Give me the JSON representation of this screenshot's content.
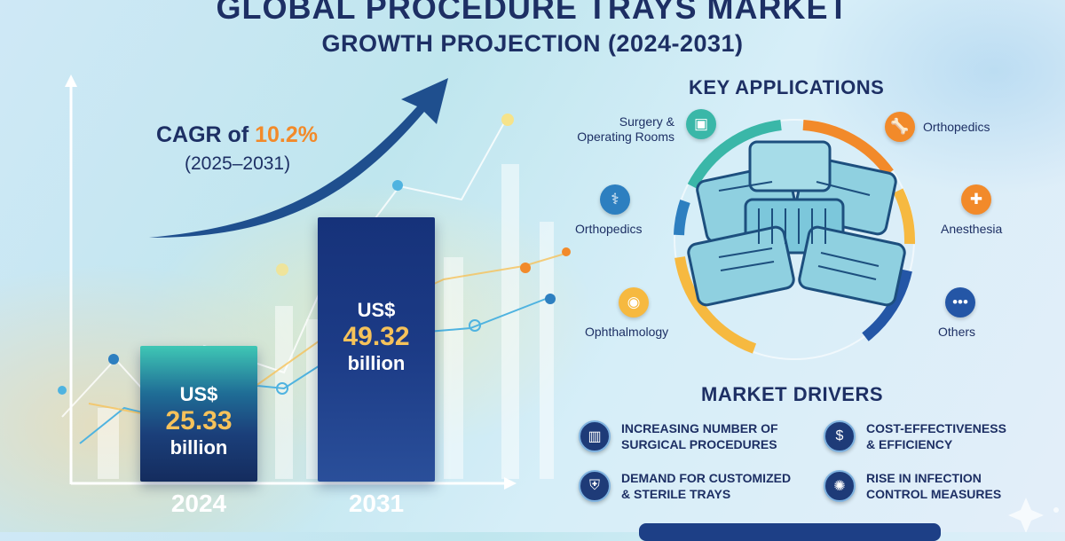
{
  "header": {
    "title_line1": "GLOBAL PROCEDURE TRAYS MARKET",
    "title_line2": "GROWTH PROJECTION (2024-2031)"
  },
  "cagr": {
    "prefix": "CAGR of",
    "value": "10.2%",
    "period": "(2025–2031)"
  },
  "chart_data": {
    "type": "bar",
    "categories": [
      "2024",
      "2031"
    ],
    "values": [
      25.33,
      49.32
    ],
    "currency": "US$",
    "unit": "billion",
    "value_labels": [
      "25.33",
      "49.32"
    ],
    "colors": [
      "#1b3f7a",
      "#1c3b86"
    ]
  },
  "applications": {
    "title": "KEY APPLICATIONS",
    "items": [
      {
        "label": "Surgery &\nOperating Rooms",
        "icon": "tray-icon",
        "color": "#3ab7a8"
      },
      {
        "label": "Orthopedics",
        "icon": "bone-icon",
        "color": "#f28a2a"
      },
      {
        "label": "Orthopedics",
        "icon": "dumbbell-icon",
        "color": "#2d7fc0"
      },
      {
        "label": "Anesthesia",
        "icon": "bottle-icon",
        "color": "#f28a2a"
      },
      {
        "label": "Ophthalmology",
        "icon": "eye-icon",
        "color": "#f6b940"
      },
      {
        "label": "Others",
        "icon": "dots-icon",
        "color": "#2456a6"
      }
    ]
  },
  "drivers": {
    "title": "MARKET DRIVERS",
    "items": [
      {
        "label": "INCREASING NUMBER OF\nSURGICAL PROCEDURES",
        "icon": "bar-chart-icon"
      },
      {
        "label": "COST-EFFECTIVENESS\n& EFFICIENCY",
        "icon": "money-hand-icon"
      },
      {
        "label": "DEMAND FOR CUSTOMIZED\n& STERILE TRAYS",
        "icon": "shield-icon"
      },
      {
        "label": "RISE IN INFECTION\nCONTROL MEASURES",
        "icon": "virus-icon"
      }
    ]
  }
}
